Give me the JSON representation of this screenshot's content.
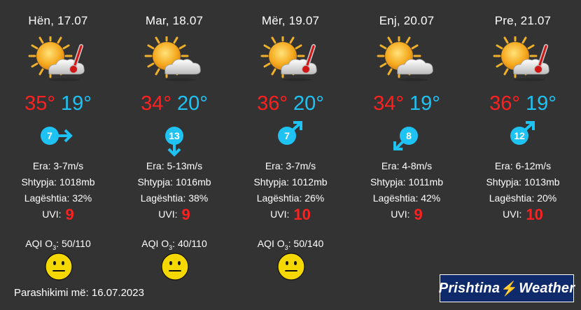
{
  "days": [
    {
      "date": "Hën, 17.07",
      "tmax": "35°",
      "tmin": "19°",
      "wind_speed": "7",
      "wind_dir": "east",
      "era_label": "Era:",
      "era": "3-7m/s",
      "pressure_label": "Shtypja:",
      "pressure": "1018mb",
      "humidity_label": "Lagështia:",
      "humidity": "32%",
      "uvi_label": "UVI:",
      "uvi": "9",
      "aqi": "AQI O",
      "aqi_sub": "3",
      "aqi_val": ": 50/110",
      "icon": "sun-cloud-thermometer-icon"
    },
    {
      "date": "Mar, 18.07",
      "tmax": "34°",
      "tmin": "20°",
      "wind_speed": "13",
      "wind_dir": "south",
      "era_label": "Era:",
      "era": "5-13m/s",
      "pressure_label": "Shtypja:",
      "pressure": "1016mb",
      "humidity_label": "Lagështia:",
      "humidity": "38%",
      "uvi_label": "UVI:",
      "uvi": "9",
      "aqi": "AQI O",
      "aqi_sub": "3",
      "aqi_val": ": 40/110",
      "icon": "sun-cloud-icon"
    },
    {
      "date": "Mër, 19.07",
      "tmax": "36°",
      "tmin": "20°",
      "wind_speed": "7",
      "wind_dir": "north-east",
      "era_label": "Era:",
      "era": "3-7m/s",
      "pressure_label": "Shtypja:",
      "pressure": "1012mb",
      "humidity_label": "Lagështia:",
      "humidity": "26%",
      "uvi_label": "UVI:",
      "uvi": "10",
      "aqi": "AQI O",
      "aqi_sub": "3",
      "aqi_val": ": 50/140",
      "icon": "sun-cloud-thermometer-icon"
    },
    {
      "date": "Enj, 20.07",
      "tmax": "34°",
      "tmin": "19°",
      "wind_speed": "8",
      "wind_dir": "south-west",
      "era_label": "Era:",
      "era": "4-8m/s",
      "pressure_label": "Shtypja:",
      "pressure": "1011mb",
      "humidity_label": "Lagështia:",
      "humidity": "42%",
      "uvi_label": "UVI:",
      "uvi": "9",
      "aqi": "",
      "aqi_sub": "",
      "aqi_val": "",
      "icon": "sun-cloud-icon"
    },
    {
      "date": "Pre, 21.07",
      "tmax": "36°",
      "tmin": "19°",
      "wind_speed": "12",
      "wind_dir": "north-east",
      "era_label": "Era:",
      "era": "6-12m/s",
      "pressure_label": "Shtypja:",
      "pressure": "1013mb",
      "humidity_label": "Lagështia:",
      "humidity": "20%",
      "uvi_label": "UVI:",
      "uvi": "10",
      "aqi": "",
      "aqi_sub": "",
      "aqi_val": "",
      "icon": "sun-cloud-thermometer-icon"
    }
  ],
  "footer": {
    "forecast_label": "Parashikimi më: 16.07.2023"
  },
  "logo": {
    "part1": "Prishtina",
    "part2": "Weather"
  },
  "colors": {
    "background": "#333333",
    "max_temp": "#ff2020",
    "min_temp": "#1fc3f3",
    "wind_badge": "#1fc3f3",
    "uvi": "#ff2020",
    "aqi_face": "#f5d800",
    "logo_bg": "#0e2a6b"
  }
}
